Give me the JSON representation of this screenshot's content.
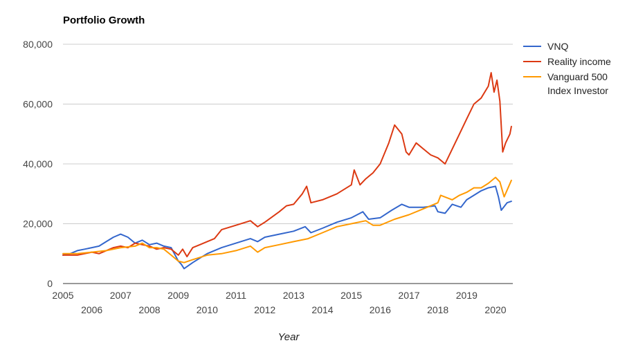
{
  "chart_data": {
    "type": "line",
    "title": "Portfolio Growth",
    "xlabel": "Year",
    "ylabel": "",
    "ylim": [
      0,
      80000
    ],
    "xlim": [
      2005.0,
      2020.6
    ],
    "yticks": [
      "0",
      "20,000",
      "40,000",
      "60,000",
      "80,000"
    ],
    "ytick_values": [
      0,
      20000,
      40000,
      60000,
      80000
    ],
    "xticks": [
      "2005",
      "2006",
      "2007",
      "2008",
      "2009",
      "2010",
      "2011",
      "2012",
      "2013",
      "2014",
      "2015",
      "2016",
      "2017",
      "2018",
      "2019",
      "2020"
    ],
    "xtick_values": [
      2005,
      2006,
      2007,
      2008,
      2009,
      2010,
      2011,
      2012,
      2013,
      2014,
      2015,
      2016,
      2017,
      2018,
      2019,
      2020
    ],
    "grid": true,
    "legend_position": "right",
    "series": [
      {
        "name": "VNQ",
        "color": "#3366cc",
        "x": [
          2005.0,
          2005.25,
          2005.5,
          2005.75,
          2006.0,
          2006.25,
          2006.5,
          2006.75,
          2007.0,
          2007.25,
          2007.5,
          2007.75,
          2008.0,
          2008.25,
          2008.5,
          2008.75,
          2009.0,
          2009.1,
          2009.2,
          2009.5,
          2009.75,
          2010.0,
          2010.5,
          2011.0,
          2011.5,
          2011.75,
          2012.0,
          2012.5,
          2013.0,
          2013.4,
          2013.6,
          2014.0,
          2014.5,
          2015.0,
          2015.4,
          2015.6,
          2016.0,
          2016.4,
          2016.75,
          2017.0,
          2017.5,
          2017.9,
          2018.0,
          2018.25,
          2018.5,
          2018.8,
          2019.0,
          2019.25,
          2019.5,
          2019.75,
          2020.0,
          2020.1,
          2020.2,
          2020.4,
          2020.55
        ],
        "values": [
          9500,
          10000,
          11000,
          11500,
          12000,
          12500,
          14000,
          15500,
          16500,
          15500,
          13500,
          14500,
          13000,
          13500,
          12500,
          12000,
          7500,
          6500,
          5000,
          7000,
          8500,
          10000,
          12000,
          13500,
          15000,
          14000,
          15500,
          16500,
          17500,
          19000,
          17000,
          18500,
          20500,
          22000,
          24000,
          21500,
          22000,
          24500,
          26500,
          25500,
          25500,
          26000,
          24000,
          23500,
          26500,
          25500,
          28000,
          29500,
          31000,
          32000,
          32500,
          29000,
          24500,
          27000,
          27500
        ]
      },
      {
        "name": "Reality income",
        "color": "#dc3912",
        "x": [
          2005.0,
          2005.25,
          2005.5,
          2005.75,
          2006.0,
          2006.25,
          2006.5,
          2006.75,
          2007.0,
          2007.25,
          2007.5,
          2007.75,
          2008.0,
          2008.25,
          2008.5,
          2008.75,
          2009.0,
          2009.15,
          2009.3,
          2009.5,
          2009.75,
          2010.0,
          2010.25,
          2010.5,
          2011.0,
          2011.5,
          2011.75,
          2012.0,
          2012.5,
          2012.75,
          2013.0,
          2013.3,
          2013.45,
          2013.6,
          2014.0,
          2014.5,
          2015.0,
          2015.1,
          2015.3,
          2015.5,
          2015.75,
          2016.0,
          2016.3,
          2016.5,
          2016.75,
          2016.9,
          2017.0,
          2017.25,
          2017.5,
          2017.75,
          2018.0,
          2018.25,
          2018.5,
          2018.75,
          2019.0,
          2019.25,
          2019.5,
          2019.75,
          2019.85,
          2019.95,
          2020.05,
          2020.15,
          2020.25,
          2020.35,
          2020.5,
          2020.55
        ],
        "values": [
          9500,
          9500,
          9500,
          10000,
          10500,
          10000,
          11000,
          12000,
          12500,
          12000,
          13500,
          13000,
          12500,
          11500,
          12000,
          11500,
          9500,
          11500,
          9000,
          12000,
          13000,
          14000,
          15000,
          18000,
          19500,
          21000,
          19000,
          20500,
          24000,
          26000,
          26500,
          30000,
          32500,
          27000,
          28000,
          30000,
          33000,
          38000,
          33000,
          35000,
          37000,
          40000,
          47000,
          53000,
          50000,
          44000,
          43000,
          47000,
          45000,
          43000,
          42000,
          40000,
          45000,
          50000,
          55000,
          60000,
          62000,
          66000,
          70500,
          64000,
          68000,
          61000,
          44000,
          47000,
          50000,
          52500
        ]
      },
      {
        "name": "Vanguard 500 Index Investor",
        "color": "#ff9900",
        "x": [
          2005.0,
          2005.5,
          2006.0,
          2006.5,
          2007.0,
          2007.5,
          2007.75,
          2008.0,
          2008.25,
          2008.5,
          2008.75,
          2009.0,
          2009.2,
          2009.5,
          2010.0,
          2010.5,
          2011.0,
          2011.5,
          2011.75,
          2012.0,
          2012.5,
          2013.0,
          2013.5,
          2014.0,
          2014.5,
          2015.0,
          2015.5,
          2015.75,
          2016.0,
          2016.5,
          2017.0,
          2017.5,
          2018.0,
          2018.1,
          2018.5,
          2018.75,
          2019.0,
          2019.25,
          2019.5,
          2019.75,
          2020.0,
          2020.15,
          2020.3,
          2020.55
        ],
        "values": [
          10000,
          10000,
          10500,
          11000,
          12000,
          12500,
          13500,
          12000,
          12000,
          11500,
          9500,
          7500,
          7000,
          8000,
          9500,
          10000,
          11000,
          12500,
          10500,
          12000,
          13000,
          14000,
          15000,
          17000,
          19000,
          20000,
          21000,
          19500,
          19500,
          21500,
          23000,
          25000,
          27000,
          29500,
          28000,
          29500,
          30500,
          32000,
          32000,
          33500,
          35500,
          34000,
          29000,
          34500
        ]
      }
    ]
  }
}
